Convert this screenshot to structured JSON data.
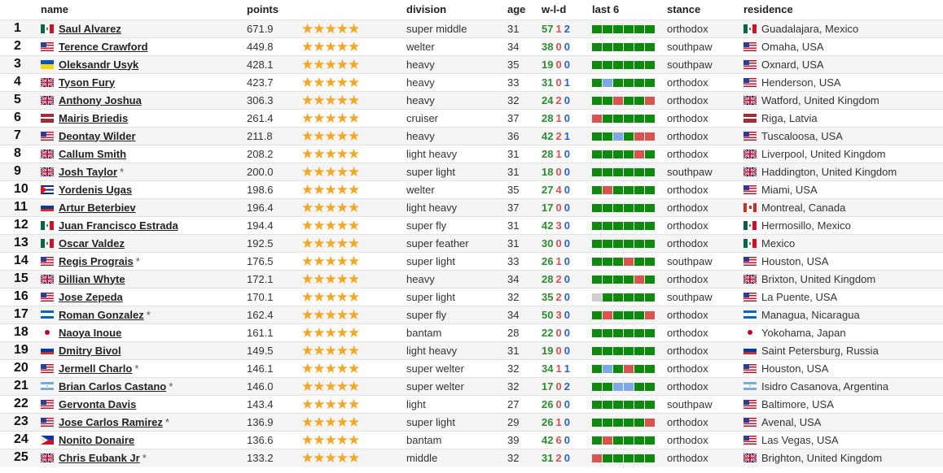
{
  "headers": {
    "name": "name",
    "points": "points",
    "division": "division",
    "age": "age",
    "wld": "w-l-d",
    "last6": "last 6",
    "stance": "stance",
    "residence": "residence"
  },
  "colors": {
    "win": "#0b8a0b",
    "loss": "#d9534f",
    "draw": "#7fa7e6",
    "none": "#cfcfcf",
    "star": "#f5a623"
  },
  "rows": [
    {
      "rank": "1",
      "flag": "mx",
      "name": "Saul Alvarez",
      "asterisk": "",
      "points": "671.9",
      "stars": 5,
      "division": "super middle",
      "age": "31",
      "w": "57",
      "l": "1",
      "d": "2",
      "last6": [
        "W",
        "W",
        "W",
        "W",
        "W",
        "W"
      ],
      "stance": "orthodox",
      "res_flag": "mx",
      "residence": "Guadalajara, Mexico"
    },
    {
      "rank": "2",
      "flag": "us",
      "name": "Terence Crawford",
      "asterisk": "",
      "points": "449.8",
      "stars": 5,
      "division": "welter",
      "age": "34",
      "w": "38",
      "l": "0",
      "d": "0",
      "last6": [
        "W",
        "W",
        "W",
        "W",
        "W",
        "W"
      ],
      "stance": "southpaw",
      "res_flag": "us",
      "residence": "Omaha, USA"
    },
    {
      "rank": "3",
      "flag": "ua",
      "name": "Oleksandr Usyk",
      "asterisk": "",
      "points": "428.1",
      "stars": 5,
      "division": "heavy",
      "age": "35",
      "w": "19",
      "l": "0",
      "d": "0",
      "last6": [
        "W",
        "W",
        "W",
        "W",
        "W",
        "W"
      ],
      "stance": "southpaw",
      "res_flag": "us",
      "residence": "Oxnard, USA"
    },
    {
      "rank": "4",
      "flag": "gb",
      "name": "Tyson Fury",
      "asterisk": "",
      "points": "423.7",
      "stars": 5,
      "division": "heavy",
      "age": "33",
      "w": "31",
      "l": "0",
      "d": "1",
      "last6": [
        "W",
        "D",
        "W",
        "W",
        "W",
        "W"
      ],
      "stance": "orthodox",
      "res_flag": "us",
      "residence": "Henderson, USA"
    },
    {
      "rank": "5",
      "flag": "gb",
      "name": "Anthony Joshua",
      "asterisk": "",
      "points": "306.3",
      "stars": 5,
      "division": "heavy",
      "age": "32",
      "w": "24",
      "l": "2",
      "d": "0",
      "last6": [
        "W",
        "W",
        "L",
        "W",
        "W",
        "L"
      ],
      "stance": "orthodox",
      "res_flag": "gb",
      "residence": "Watford, United Kingdom"
    },
    {
      "rank": "6",
      "flag": "lv",
      "name": "Mairis Briedis",
      "asterisk": "",
      "points": "261.4",
      "stars": 5,
      "division": "cruiser",
      "age": "37",
      "w": "28",
      "l": "1",
      "d": "0",
      "last6": [
        "L",
        "W",
        "W",
        "W",
        "W",
        "W"
      ],
      "stance": "orthodox",
      "res_flag": "lv",
      "residence": "Riga, Latvia"
    },
    {
      "rank": "7",
      "flag": "us",
      "name": "Deontay Wilder",
      "asterisk": "",
      "points": "211.8",
      "stars": 5,
      "division": "heavy",
      "age": "36",
      "w": "42",
      "l": "2",
      "d": "1",
      "last6": [
        "W",
        "W",
        "D",
        "W",
        "L",
        "L"
      ],
      "stance": "orthodox",
      "res_flag": "us",
      "residence": "Tuscaloosa, USA"
    },
    {
      "rank": "8",
      "flag": "gb",
      "name": "Callum Smith",
      "asterisk": "",
      "points": "208.2",
      "stars": 5,
      "division": "light heavy",
      "age": "31",
      "w": "28",
      "l": "1",
      "d": "0",
      "last6": [
        "W",
        "W",
        "W",
        "W",
        "L",
        "W"
      ],
      "stance": "orthodox",
      "res_flag": "gb",
      "residence": "Liverpool, United Kingdom"
    },
    {
      "rank": "9",
      "flag": "gb",
      "name": "Josh Taylor",
      "asterisk": "*",
      "points": "200.0",
      "stars": 5,
      "division": "super light",
      "age": "31",
      "w": "18",
      "l": "0",
      "d": "0",
      "last6": [
        "W",
        "W",
        "W",
        "W",
        "W",
        "W"
      ],
      "stance": "southpaw",
      "res_flag": "gb",
      "residence": "Haddington, United Kingdom"
    },
    {
      "rank": "10",
      "flag": "cu",
      "name": "Yordenis Ugas",
      "asterisk": "",
      "points": "198.6",
      "stars": 5,
      "division": "welter",
      "age": "35",
      "w": "27",
      "l": "4",
      "d": "0",
      "last6": [
        "W",
        "L",
        "W",
        "W",
        "W",
        "W"
      ],
      "stance": "orthodox",
      "res_flag": "us",
      "residence": "Miami, USA"
    },
    {
      "rank": "11",
      "flag": "ru",
      "name": "Artur Beterbiev",
      "asterisk": "",
      "points": "196.4",
      "stars": 5,
      "division": "light heavy",
      "age": "37",
      "w": "17",
      "l": "0",
      "d": "0",
      "last6": [
        "W",
        "W",
        "W",
        "W",
        "W",
        "W"
      ],
      "stance": "orthodox",
      "res_flag": "ca",
      "residence": "Montreal, Canada"
    },
    {
      "rank": "12",
      "flag": "mx",
      "name": "Juan Francisco Estrada",
      "asterisk": "",
      "points": "194.4",
      "stars": 5,
      "division": "super fly",
      "age": "31",
      "w": "42",
      "l": "3",
      "d": "0",
      "last6": [
        "W",
        "W",
        "W",
        "W",
        "W",
        "W"
      ],
      "stance": "orthodox",
      "res_flag": "mx",
      "residence": "Hermosillo, Mexico"
    },
    {
      "rank": "13",
      "flag": "mx",
      "name": "Oscar Valdez",
      "asterisk": "",
      "points": "192.5",
      "stars": 5,
      "division": "super feather",
      "age": "31",
      "w": "30",
      "l": "0",
      "d": "0",
      "last6": [
        "W",
        "W",
        "W",
        "W",
        "W",
        "W"
      ],
      "stance": "orthodox",
      "res_flag": "mx",
      "residence": "Mexico"
    },
    {
      "rank": "14",
      "flag": "us",
      "name": "Regis Prograis",
      "asterisk": "*",
      "points": "176.5",
      "stars": 5,
      "division": "super light",
      "age": "33",
      "w": "26",
      "l": "1",
      "d": "0",
      "last6": [
        "W",
        "W",
        "W",
        "L",
        "W",
        "W"
      ],
      "stance": "southpaw",
      "res_flag": "us",
      "residence": "Houston, USA"
    },
    {
      "rank": "15",
      "flag": "gb",
      "name": "Dillian Whyte",
      "asterisk": "",
      "points": "172.1",
      "stars": 5,
      "division": "heavy",
      "age": "34",
      "w": "28",
      "l": "2",
      "d": "0",
      "last6": [
        "W",
        "W",
        "W",
        "W",
        "L",
        "W"
      ],
      "stance": "orthodox",
      "res_flag": "gb",
      "residence": "Brixton, United Kingdom"
    },
    {
      "rank": "16",
      "flag": "us",
      "name": "Jose Zepeda",
      "asterisk": "",
      "points": "170.1",
      "stars": 5,
      "division": "super light",
      "age": "32",
      "w": "35",
      "l": "2",
      "d": "0",
      "last6": [
        "N",
        "W",
        "W",
        "W",
        "W",
        "W"
      ],
      "stance": "southpaw",
      "res_flag": "us",
      "residence": "La Puente, USA"
    },
    {
      "rank": "17",
      "flag": "ni",
      "name": "Roman Gonzalez",
      "asterisk": "*",
      "points": "162.4",
      "stars": 5,
      "division": "super fly",
      "age": "34",
      "w": "50",
      "l": "3",
      "d": "0",
      "last6": [
        "W",
        "L",
        "W",
        "W",
        "W",
        "L"
      ],
      "stance": "orthodox",
      "res_flag": "ni",
      "residence": "Managua, Nicaragua"
    },
    {
      "rank": "18",
      "flag": "jp",
      "name": "Naoya Inoue",
      "asterisk": "",
      "points": "161.1",
      "stars": 5,
      "division": "bantam",
      "age": "28",
      "w": "22",
      "l": "0",
      "d": "0",
      "last6": [
        "W",
        "W",
        "W",
        "W",
        "W",
        "W"
      ],
      "stance": "orthodox",
      "res_flag": "jp",
      "residence": "Yokohama, Japan"
    },
    {
      "rank": "19",
      "flag": "ru",
      "name": "Dmitry Bivol",
      "asterisk": "",
      "points": "149.5",
      "stars": 5,
      "division": "light heavy",
      "age": "31",
      "w": "19",
      "l": "0",
      "d": "0",
      "last6": [
        "W",
        "W",
        "W",
        "W",
        "W",
        "W"
      ],
      "stance": "orthodox",
      "res_flag": "ru",
      "residence": "Saint Petersburg, Russia"
    },
    {
      "rank": "20",
      "flag": "us",
      "name": "Jermell Charlo",
      "asterisk": "*",
      "points": "146.1",
      "stars": 5,
      "division": "super welter",
      "age": "32",
      "w": "34",
      "l": "1",
      "d": "1",
      "last6": [
        "W",
        "D",
        "W",
        "L",
        "W",
        "W"
      ],
      "stance": "orthodox",
      "res_flag": "us",
      "residence": "Houston, USA"
    },
    {
      "rank": "21",
      "flag": "ar",
      "name": "Brian Carlos Castano",
      "asterisk": "*",
      "points": "146.0",
      "stars": 5,
      "division": "super welter",
      "age": "32",
      "w": "17",
      "l": "0",
      "d": "2",
      "last6": [
        "W",
        "W",
        "D",
        "D",
        "W",
        "W"
      ],
      "stance": "orthodox",
      "res_flag": "ar",
      "residence": "Isidro Casanova, Argentina"
    },
    {
      "rank": "22",
      "flag": "us",
      "name": "Gervonta Davis",
      "asterisk": "",
      "points": "143.4",
      "stars": 5,
      "division": "light",
      "age": "27",
      "w": "26",
      "l": "0",
      "d": "0",
      "last6": [
        "W",
        "W",
        "W",
        "W",
        "W",
        "W"
      ],
      "stance": "southpaw",
      "res_flag": "us",
      "residence": "Baltimore, USA"
    },
    {
      "rank": "23",
      "flag": "us",
      "name": "Jose Carlos Ramirez",
      "asterisk": "*",
      "points": "136.9",
      "stars": 5,
      "division": "super light",
      "age": "29",
      "w": "26",
      "l": "1",
      "d": "0",
      "last6": [
        "W",
        "W",
        "W",
        "W",
        "W",
        "L"
      ],
      "stance": "orthodox",
      "res_flag": "us",
      "residence": "Avenal, USA"
    },
    {
      "rank": "24",
      "flag": "ph",
      "name": "Nonito Donaire",
      "asterisk": "",
      "points": "136.6",
      "stars": 5,
      "division": "bantam",
      "age": "39",
      "w": "42",
      "l": "6",
      "d": "0",
      "last6": [
        "W",
        "L",
        "W",
        "W",
        "W",
        "W"
      ],
      "stance": "orthodox",
      "res_flag": "us",
      "residence": "Las Vegas, USA"
    },
    {
      "rank": "25",
      "flag": "gb",
      "name": "Chris Eubank Jr",
      "asterisk": "*",
      "points": "133.2",
      "stars": 5,
      "division": "middle",
      "age": "32",
      "w": "31",
      "l": "2",
      "d": "0",
      "last6": [
        "L",
        "W",
        "W",
        "W",
        "W",
        "W"
      ],
      "stance": "orthodox",
      "res_flag": "gb",
      "residence": "Brighton, United Kingdom"
    }
  ]
}
